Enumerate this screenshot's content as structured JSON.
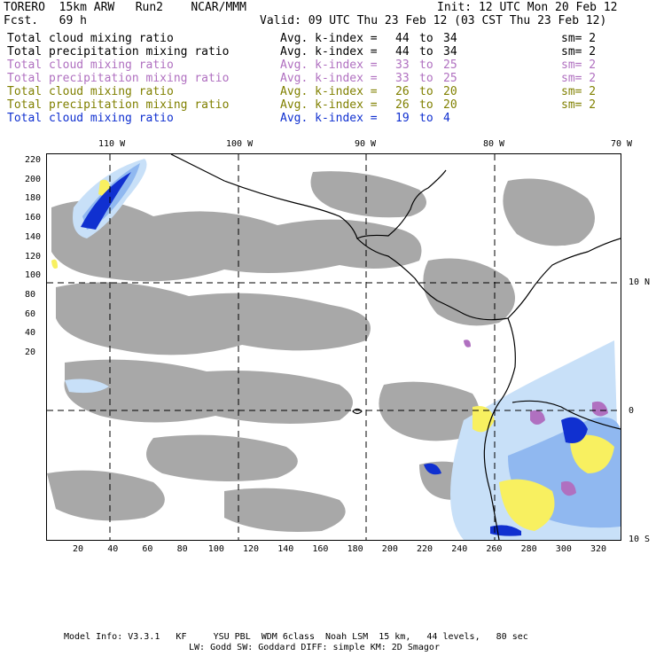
{
  "header": {
    "model": "TORERO  15km ARW   Run2    NCAR/MMM",
    "init": "Init: 12 UTC Mon 20 Feb 12",
    "fcst": "Fcst.   69 h",
    "valid": "Valid: 09 UTC Thu 23 Feb 12 (03 CST Thu 23 Feb 12)"
  },
  "legend": [
    {
      "label": "Total cloud mixing ratio",
      "avg": "Avg. k-index =",
      "from": "44",
      "to": "to",
      "upto": "34",
      "sm": "sm= 2",
      "color": "#000000"
    },
    {
      "label": "Total precipitation mixing ratio",
      "avg": "Avg. k-index =",
      "from": "44",
      "to": "to",
      "upto": "34",
      "sm": "sm= 2",
      "color": "#000000"
    },
    {
      "label": "Total cloud mixing ratio",
      "avg": "Avg. k-index =",
      "from": "33",
      "to": "to",
      "upto": "25",
      "sm": "sm= 2",
      "color": "#b070c0"
    },
    {
      "label": "Total precipitation mixing ratio",
      "avg": "Avg. k-index =",
      "from": "33",
      "to": "to",
      "upto": "25",
      "sm": "sm= 2",
      "color": "#b070c0"
    },
    {
      "label": "Total cloud mixing ratio",
      "avg": "Avg. k-index =",
      "from": "26",
      "to": "to",
      "upto": "20",
      "sm": "sm= 2",
      "color": "#808000"
    },
    {
      "label": "Total precipitation mixing ratio",
      "avg": "Avg. k-index =",
      "from": "26",
      "to": "to",
      "upto": "20",
      "sm": "sm= 2",
      "color": "#808000"
    },
    {
      "label": "Total cloud mixing ratio",
      "avg": "Avg. k-index =",
      "from": "19",
      "to": "to",
      "upto": "4",
      "sm": "",
      "color": "#1030d0"
    }
  ],
  "top_ticks": [
    "110 W",
    "100 W",
    "90 W",
    "80 W",
    "70 W"
  ],
  "left_ticks": [
    "220",
    "200",
    "180",
    "160",
    "140",
    "120",
    "100",
    "80",
    "60",
    "40",
    "20"
  ],
  "bottom_ticks": [
    "20",
    "40",
    "60",
    "80",
    "100",
    "120",
    "140",
    "160",
    "180",
    "200",
    "220",
    "240",
    "260",
    "280",
    "300",
    "320"
  ],
  "right_ticks": [
    "10 N",
    "0",
    "10 S"
  ],
  "footer": {
    "line1": "Model Info: V3.3.1   KF     YSU PBL  WDM 6class  Noah LSM  15 km,   44 levels,   80 sec",
    "line2": "LW: Godd SW: Goddard DIFF: simple KM: 2D Smagor"
  },
  "colors": {
    "gray": "#a8a8a8",
    "light_blue": "#c8e0f8",
    "mid_blue": "#90b8f0",
    "dark_blue": "#1030d0",
    "yellow": "#f8f060",
    "purple": "#b070c0"
  }
}
